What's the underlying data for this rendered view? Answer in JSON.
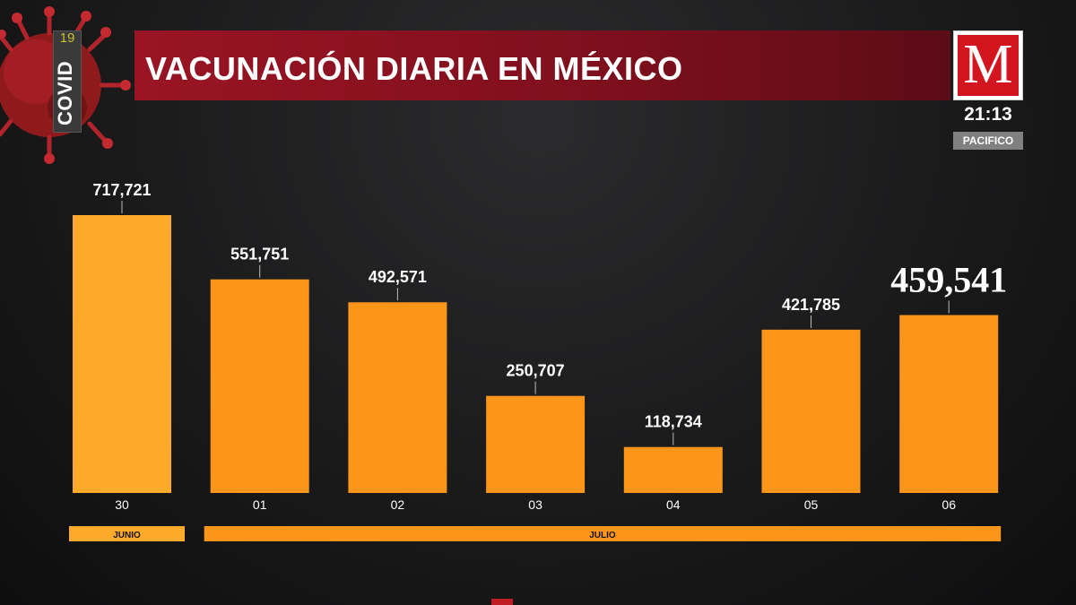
{
  "header": {
    "title": "VACUNACIÓN DIARIA EN MÉXICO",
    "covid_label": "COVID",
    "covid_number": "19",
    "logo_letter": "M",
    "clock": "21:13",
    "region": "PACIFICO"
  },
  "colors": {
    "bar_first": "#ffaa2b",
    "bar": "#fb961a",
    "title_bar": "#8c1220",
    "logo_red": "#d2151f"
  },
  "chart_data": {
    "type": "bar",
    "title": "VACUNACIÓN DIARIA EN MÉXICO",
    "categories": [
      "30",
      "01",
      "02",
      "03",
      "04",
      "05",
      "06"
    ],
    "values": [
      717721,
      551751,
      492571,
      250707,
      118734,
      421785,
      459541
    ],
    "labels": [
      "717,721",
      "551,751",
      "492,571",
      "250,707",
      "118,734",
      "421,785",
      "459,541"
    ],
    "highlight_index": 6,
    "ylim": [
      0,
      717721
    ],
    "groups": [
      {
        "label": "JUNIO",
        "categories": [
          "30"
        ]
      },
      {
        "label": "JULIO",
        "categories": [
          "01",
          "02",
          "03",
          "04",
          "05",
          "06"
        ]
      }
    ],
    "grid": false,
    "legend": "none"
  }
}
